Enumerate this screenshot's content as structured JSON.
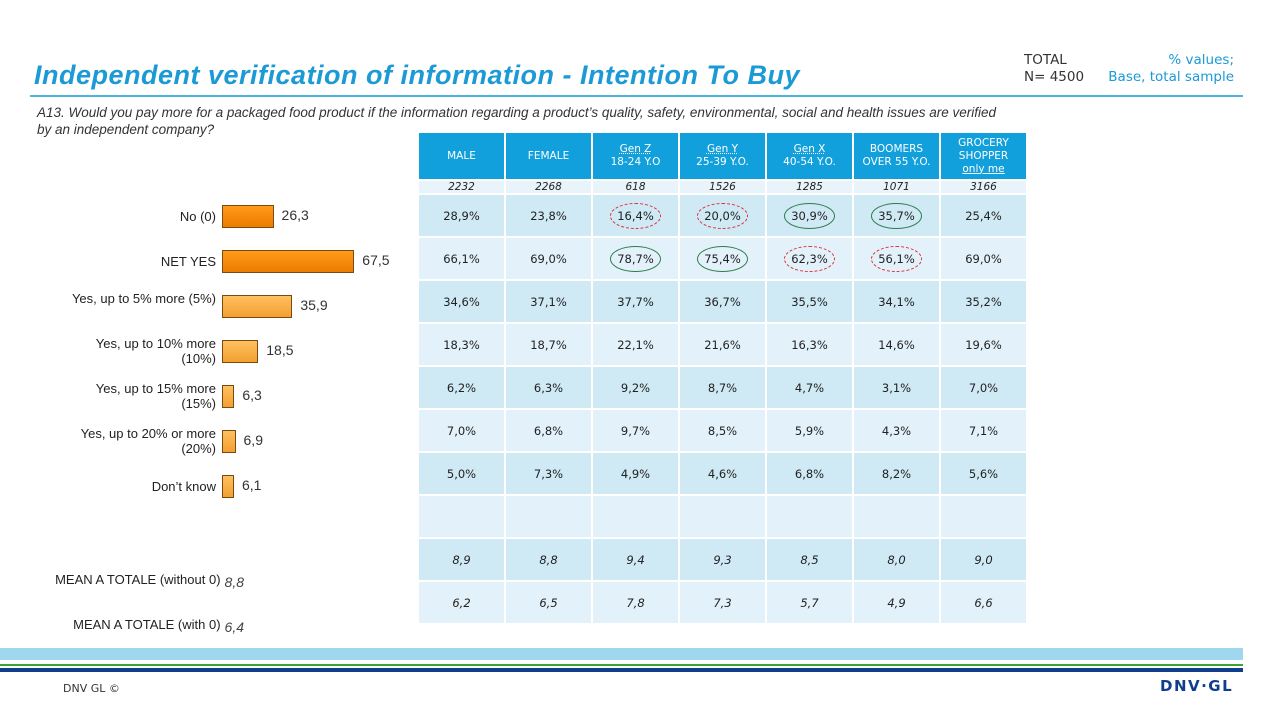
{
  "header": {
    "title": "Independent verification of information - Intention To Buy",
    "total_label": "TOTAL",
    "total_n": "N= 4500",
    "base_line1": "% values;",
    "base_line2": "Base, total sample"
  },
  "question": "A13. Would you pay more for a packaged food product if the information regarding a product’s quality, safety, environmental, social and health issues are verified by an independent company?",
  "table": {
    "columns": [
      [
        "MALE"
      ],
      [
        "FEMALE"
      ],
      [
        "Gen Z",
        "18-24 Y.O"
      ],
      [
        "Gen Y",
        "25-39 Y.O."
      ],
      [
        "Gen X",
        "40-54 Y.O."
      ],
      [
        "BOOMERS",
        "OVER 55 Y.O."
      ],
      [
        "GROCERY",
        "SHOPPER",
        "only me"
      ]
    ],
    "counts": [
      "2232",
      "2268",
      "618",
      "1526",
      "1285",
      "1071",
      "3166"
    ],
    "rows": [
      {
        "cells": [
          "28,9%",
          "23,8%",
          "16,4%",
          "20,0%",
          "30,9%",
          "35,7%",
          "25,4%"
        ],
        "marks": [
          "",
          "",
          "red",
          "red",
          "green",
          "green",
          ""
        ]
      },
      {
        "cells": [
          "66,1%",
          "69,0%",
          "78,7%",
          "75,4%",
          "62,3%",
          "56,1%",
          "69,0%"
        ],
        "marks": [
          "",
          "",
          "green",
          "green",
          "red",
          "red",
          ""
        ]
      },
      {
        "cells": [
          "34,6%",
          "37,1%",
          "37,7%",
          "36,7%",
          "35,5%",
          "34,1%",
          "35,2%"
        ]
      },
      {
        "cells": [
          "18,3%",
          "18,7%",
          "22,1%",
          "21,6%",
          "16,3%",
          "14,6%",
          "19,6%"
        ]
      },
      {
        "cells": [
          "6,2%",
          "6,3%",
          "9,2%",
          "8,7%",
          "4,7%",
          "3,1%",
          "7,0%"
        ]
      },
      {
        "cells": [
          "7,0%",
          "6,8%",
          "9,7%",
          "8,5%",
          "5,9%",
          "4,3%",
          "7,1%"
        ]
      },
      {
        "cells": [
          "5,0%",
          "7,3%",
          "4,9%",
          "4,6%",
          "6,8%",
          "8,2%",
          "5,6%"
        ]
      },
      {
        "cells": [
          "",
          "",
          "",
          "",
          "",
          "",
          ""
        ]
      }
    ],
    "means": [
      {
        "label": "MEAN A TOTALE (without 0)",
        "total": "8,8",
        "cells": [
          "8,9",
          "8,8",
          "9,4",
          "9,3",
          "8,5",
          "8,0",
          "9,0"
        ]
      },
      {
        "label": "MEAN A TOTALE (with 0)",
        "total": "6,4",
        "cells": [
          "6,2",
          "6,5",
          "7,8",
          "7,3",
          "5,7",
          "4,9",
          "6,6"
        ]
      }
    ]
  },
  "chart_data": {
    "type": "bar",
    "orientation": "horizontal",
    "categories": [
      "No (0)",
      "NET YES",
      "Yes, up to 5% more (5%)",
      "Yes, up to 10% more (10%)",
      "Yes, up to 15% more (15%)",
      "Yes, up to 20% or more (20%)",
      "Don’t know"
    ],
    "values": [
      26.3,
      67.5,
      35.9,
      18.5,
      6.3,
      6.9,
      6.1
    ],
    "labels": [
      "26,3",
      "67,5",
      "35,9",
      "18,5",
      "6,3",
      "6,9",
      "6,1"
    ],
    "colors": [
      "#f08a0a",
      "#f08a0a",
      "#f7ac40",
      "#f7ac40",
      "#f7ac40",
      "#f7ac40",
      "#f7ac40"
    ]
  },
  "footer": {
    "copyright": "DNV GL ©",
    "logo": "DNV·GL"
  }
}
